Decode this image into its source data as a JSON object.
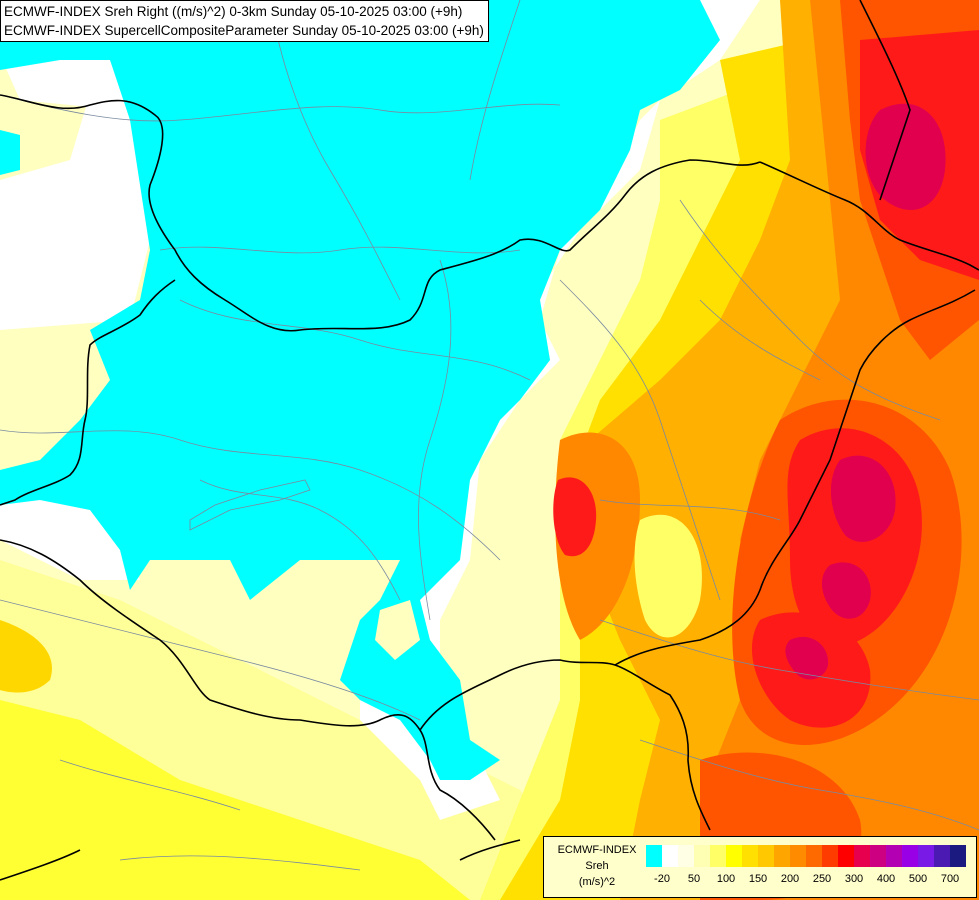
{
  "title_lines": [
    "ECMWF-INDEX Sreh Right ((m/s)^2) 0-3km Sunday 05-10-2025 03:00 (+9h)",
    "ECMWF-INDEX SupercellCompositeParameter Sunday 05-10-2025 03:00 (+9h)"
  ],
  "legend": {
    "source": "ECMWF-INDEX",
    "variable": "Sreh",
    "unit": "(m/s)^2",
    "ticks": [
      "-20",
      "50",
      "100",
      "150",
      "200",
      "250",
      "300",
      "400",
      "500",
      "700"
    ],
    "colors": [
      "#00ffff",
      "#ffffff",
      "#ffffe6",
      "#ffffb3",
      "#ffff66",
      "#ffff00",
      "#ffe000",
      "#ffc800",
      "#ffa500",
      "#ff8c00",
      "#ff6a00",
      "#ff3c00",
      "#ff0000",
      "#e6004d",
      "#cc0080",
      "#b300b3",
      "#9900e6",
      "#7a1ae6",
      "#4b1ab3",
      "#1a1a80"
    ]
  },
  "map_colors": {
    "cyan": "#00ffff",
    "white": "#ffffff",
    "pale_yellow": "#ffffc0",
    "light_yellow": "#ffff99",
    "yellow": "#ffff33",
    "gold": "#ffd700",
    "orange_light": "#ffb000",
    "orange": "#ff8800",
    "red_orange": "#ff5500",
    "red": "#ff1a1a",
    "crimson": "#e0004d"
  }
}
